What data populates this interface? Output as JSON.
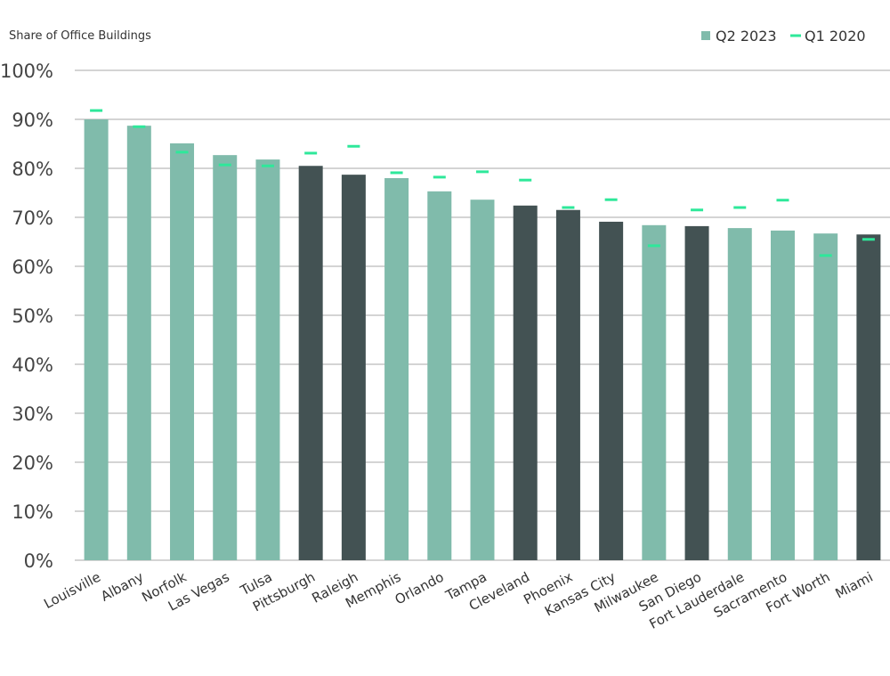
{
  "chart_data": {
    "type": "bar",
    "y_axis_label": "Share of Office Buildings",
    "categories": [
      "Louisville",
      "Albany",
      "Norfolk",
      "Las Vegas",
      "Tulsa",
      "Pittsburgh",
      "Raleigh",
      "Memphis",
      "Orlando",
      "Tampa",
      "Cleveland",
      "Phoenix",
      "Kansas City",
      "Milwaukee",
      "San Diego",
      "Fort Lauderdale",
      "Sacramento",
      "Fort Worth",
      "Miami"
    ],
    "series": [
      {
        "name": "Q2 2023",
        "color": "#80bbab",
        "colors": [
          "#80bbab",
          "#80bbab",
          "#80bbab",
          "#80bbab",
          "#80bbab",
          "#435253",
          "#435253",
          "#80bbab",
          "#80bbab",
          "#80bbab",
          "#435253",
          "#435253",
          "#435253",
          "#80bbab",
          "#435253",
          "#80bbab",
          "#80bbab",
          "#80bbab",
          "#435253"
        ],
        "values": [
          90.0,
          88.7,
          85.1,
          82.7,
          81.8,
          80.5,
          78.7,
          78.0,
          75.3,
          73.6,
          72.4,
          71.5,
          69.1,
          68.4,
          68.2,
          67.8,
          67.3,
          66.7,
          66.5
        ]
      },
      {
        "name": "Q1 2020",
        "color": "#2ee89a",
        "marker": "dash",
        "values": [
          91.8,
          88.5,
          83.3,
          80.7,
          80.5,
          83.1,
          84.5,
          79.1,
          78.2,
          79.3,
          77.6,
          72.0,
          73.6,
          64.2,
          71.5,
          72.0,
          73.5,
          62.2,
          65.5
        ]
      }
    ],
    "ylim": [
      0,
      100
    ],
    "yticks": [
      {
        "value": 0,
        "label": "0%"
      },
      {
        "value": 10,
        "label": "10%"
      },
      {
        "value": 20,
        "label": "20%"
      },
      {
        "value": 30,
        "label": "30%"
      },
      {
        "value": 40,
        "label": "40%"
      },
      {
        "value": 50,
        "label": "50%"
      },
      {
        "value": 60,
        "label": "60%"
      },
      {
        "value": 70,
        "label": "70%"
      },
      {
        "value": 80,
        "label": "80%"
      },
      {
        "value": 90,
        "label": "90%"
      },
      {
        "value": 100,
        "label": "100%"
      }
    ],
    "grid": true,
    "legend": "top-right"
  }
}
